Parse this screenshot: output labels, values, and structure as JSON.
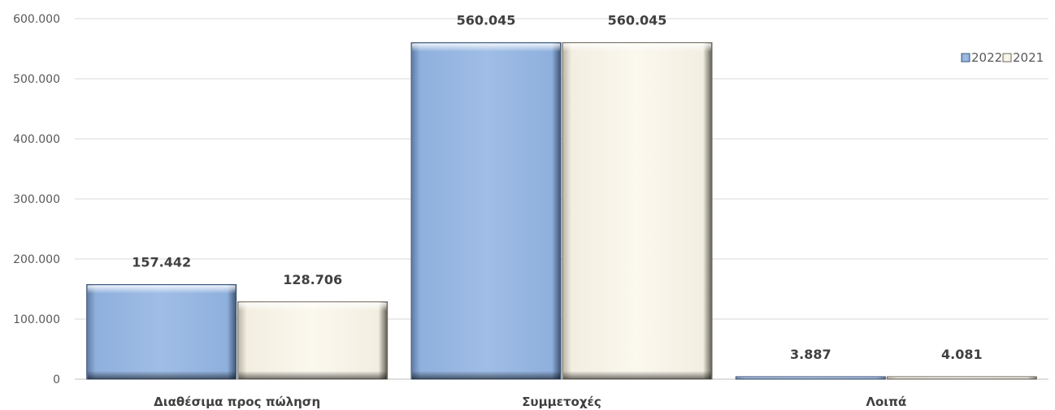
{
  "chart_data": {
    "type": "bar",
    "categories": [
      "Διαθέσιμα προς πώληση",
      "Συμμετοχές",
      "Λοιπά"
    ],
    "series": [
      {
        "name": "2022",
        "values": [
          157442,
          560045,
          3887
        ],
        "labels": [
          "157.442",
          "560.045",
          "3.887"
        ],
        "color": "#9bb9e2"
      },
      {
        "name": "2021",
        "values": [
          128706,
          560045,
          4081
        ],
        "labels": [
          "128.706",
          "560.045",
          "4.081"
        ],
        "color": "#faf6ea"
      }
    ],
    "ylim": [
      0,
      600000
    ],
    "yticks": [
      0,
      100000,
      200000,
      300000,
      400000,
      500000,
      600000
    ],
    "ytick_labels": [
      "0",
      "100.000",
      "200.000",
      "300.000",
      "400.000",
      "500.000",
      "600.000"
    ],
    "grid": true,
    "legend_position": "top-right",
    "title": "",
    "xlabel": "",
    "ylabel": ""
  }
}
